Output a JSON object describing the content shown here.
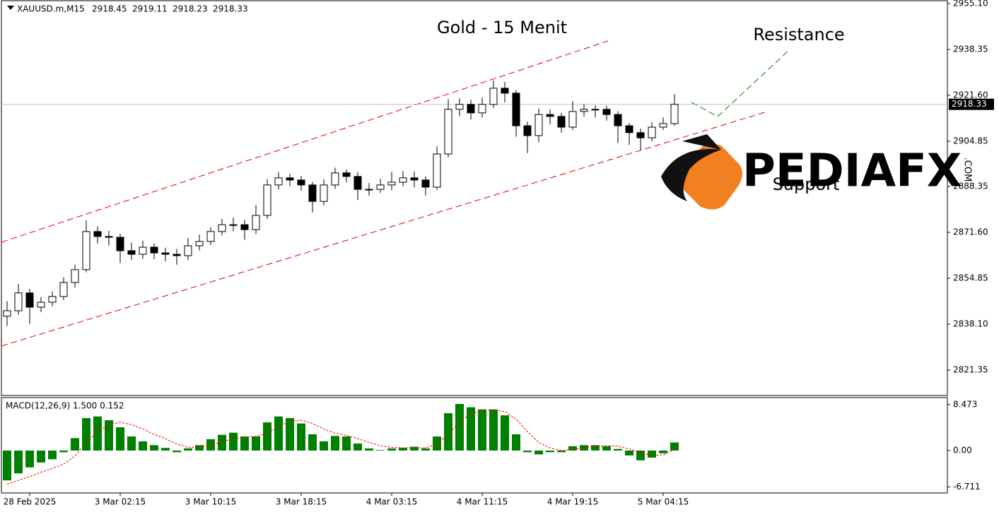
{
  "chart_data": [
    {
      "type": "candlestick",
      "title": "Gold - 15 Menit",
      "symbol": "XAUUSD.m,M15",
      "header_values": [
        2918.45,
        2919.11,
        2918.23,
        2918.33
      ],
      "annotations": [
        "Resistance",
        "Support"
      ],
      "logo": "PEDIAFX",
      "logo_suffix": ".COM",
      "categories": [
        null,
        null,
        "28 Feb 2025",
        null,
        null,
        null,
        null,
        null,
        null,
        null,
        "3 Mar 02:15",
        null,
        null,
        null,
        null,
        null,
        null,
        null,
        "3 Mar 10:15",
        null,
        null,
        null,
        null,
        null,
        null,
        null,
        "3 Mar 18:15",
        null,
        null,
        null,
        null,
        null,
        null,
        null,
        "4 Mar 03:15",
        null,
        null,
        null,
        null,
        null,
        null,
        null,
        "4 Mar 11:15",
        null,
        null,
        null,
        null,
        null,
        null,
        null,
        "4 Mar 19:15",
        null,
        null,
        null,
        null,
        null,
        null,
        null,
        "5 Mar 04:15",
        null
      ],
      "open": [
        2841.0,
        2843.0,
        2849.5,
        2844.3,
        2846.1,
        2848.2,
        2853.3,
        2858.0,
        2871.9,
        2870.1,
        2869.8,
        2864.9,
        2863.6,
        2866.2,
        2864.1,
        2863.6,
        2863.1,
        2866.7,
        2868.3,
        2871.9,
        2874.4,
        2874.4,
        2872.6,
        2877.8,
        2888.9,
        2891.5,
        2890.7,
        2888.9,
        2882.9,
        2888.9,
        2893.3,
        2892.0,
        2887.3,
        2887.3,
        2888.9,
        2889.9,
        2891.5,
        2890.7,
        2888.1,
        2900.2,
        2916.5,
        2918.3,
        2915.2,
        2918.3,
        2924.2,
        2922.4,
        2910.5,
        2906.9,
        2914.6,
        2913.9,
        2910.0,
        2915.7,
        2916.5,
        2916.5,
        2914.6,
        2910.5,
        2908.0,
        2906.1,
        2910.0,
        2911.3
      ],
      "high": [
        2846.5,
        2852.8,
        2851.0,
        2848.0,
        2850.1,
        2855.2,
        2859.8,
        2876.0,
        2873.8,
        2872.2,
        2871.0,
        2867.8,
        2868.5,
        2867.5,
        2866.0,
        2865.6,
        2869.5,
        2870.8,
        2873.5,
        2876.5,
        2877.0,
        2876.2,
        2881.5,
        2891.0,
        2893.6,
        2893.0,
        2892.2,
        2890.0,
        2891.0,
        2895.2,
        2894.5,
        2893.5,
        2889.6,
        2891.2,
        2893.6,
        2894.0,
        2893.8,
        2892.0,
        2903.0,
        2920.2,
        2920.5,
        2920.0,
        2920.8,
        2927.0,
        2926.5,
        2923.5,
        2912.0,
        2916.8,
        2916.5,
        2915.2,
        2919.5,
        2918.4,
        2918.0,
        2917.8,
        2915.8,
        2911.5,
        2909.5,
        2911.8,
        2913.5,
        2922.0
      ],
      "low": [
        2837.5,
        2841.5,
        2838.2,
        2842.5,
        2844.6,
        2846.9,
        2851.5,
        2857.0,
        2867.5,
        2866.8,
        2860.4,
        2861.5,
        2862.0,
        2861.8,
        2861.0,
        2859.8,
        2861.5,
        2865.0,
        2867.0,
        2870.5,
        2872.0,
        2868.9,
        2871.0,
        2876.5,
        2887.2,
        2888.5,
        2886.8,
        2878.9,
        2881.5,
        2887.5,
        2889.8,
        2883.4,
        2885.0,
        2886.0,
        2887.0,
        2888.4,
        2888.0,
        2885.0,
        2887.0,
        2899.0,
        2914.0,
        2912.8,
        2913.5,
        2917.0,
        2919.0,
        2906.5,
        2900.5,
        2904.5,
        2911.0,
        2908.0,
        2909.0,
        2913.8,
        2913.5,
        2912.4,
        2904.2,
        2903.5,
        2901.5,
        2904.8,
        2909.0,
        2910.5
      ],
      "close": [
        2843.0,
        2849.5,
        2844.3,
        2846.1,
        2848.2,
        2853.3,
        2858.0,
        2871.9,
        2870.1,
        2869.8,
        2864.9,
        2863.6,
        2866.2,
        2864.1,
        2863.6,
        2863.1,
        2866.7,
        2868.3,
        2871.9,
        2874.4,
        2874.4,
        2872.6,
        2877.8,
        2888.9,
        2891.5,
        2890.7,
        2888.9,
        2882.9,
        2888.9,
        2893.3,
        2892.0,
        2887.3,
        2887.3,
        2888.9,
        2889.9,
        2891.5,
        2890.7,
        2888.1,
        2900.2,
        2916.5,
        2918.3,
        2915.2,
        2918.3,
        2924.2,
        2922.4,
        2910.5,
        2906.9,
        2914.6,
        2913.9,
        2910.0,
        2915.7,
        2916.5,
        2916.5,
        2914.6,
        2910.5,
        2908.0,
        2906.1,
        2910.0,
        2911.3,
        2918.33
      ],
      "last_price": 2918.33,
      "ylim": [
        2812.08,
        2956.39
      ],
      "yticks": [
        {
          "value": 2955.1,
          "label": "2955.10"
        },
        2938.35,
        {
          "value": 2921.6,
          "label": "2921.60"
        },
        2904.85,
        2888.35,
        {
          "value": 2871.6,
          "label": "2871.60"
        },
        2854.85,
        {
          "value": 2838.1,
          "label": "2838.10"
        },
        2821.35
      ],
      "up_color": "#ffffff",
      "down_color": "#000000"
    },
    {
      "type": "macd",
      "label": "MACD(12,26,9) 1.500 0.152",
      "values": [
        -5.5,
        -4.2,
        -3.1,
        -2.2,
        -1.6,
        -0.3,
        2.3,
        6.0,
        6.3,
        5.6,
        4.3,
        2.6,
        1.7,
        1.0,
        0.5,
        -0.3,
        0.4,
        1.0,
        2.1,
        2.9,
        3.3,
        2.6,
        2.6,
        5.2,
        6.3,
        6.0,
        5.0,
        3.0,
        1.7,
        2.7,
        2.6,
        1.3,
        0.4,
        0.1,
        0.4,
        0.5,
        0.7,
        0.4,
        2.6,
        6.9,
        8.6,
        8.0,
        7.6,
        7.6,
        6.5,
        3.0,
        -0.3,
        -0.7,
        -0.3,
        -0.3,
        0.8,
        1.0,
        1.0,
        0.8,
        0.3,
        -0.9,
        -1.8,
        -1.3,
        -0.5,
        1.5
      ],
      "signal": [
        -6.2,
        -5.5,
        -4.8,
        -4.0,
        -3.3,
        -2.5,
        -1.0,
        1.5,
        3.5,
        4.8,
        5.2,
        4.8,
        4.0,
        3.0,
        2.2,
        1.2,
        0.6,
        0.6,
        1.0,
        1.6,
        2.2,
        2.5,
        2.6,
        3.2,
        4.5,
        5.4,
        5.6,
        5.0,
        4.0,
        3.2,
        2.8,
        2.2,
        1.5,
        0.9,
        0.6,
        0.5,
        0.5,
        0.5,
        1.2,
        3.0,
        5.3,
        6.8,
        7.4,
        7.5,
        7.2,
        5.8,
        3.5,
        1.5,
        0.5,
        0.0,
        0.2,
        0.5,
        0.8,
        0.9,
        0.8,
        0.3,
        -0.4,
        -0.9,
        -0.8,
        0.152
      ],
      "ylim": [
        -7.82,
        9.777
      ],
      "yticks": [
        8.473,
        {
          "value": 0,
          "label": "0.00"
        },
        -6.711
      ],
      "color": "#008000",
      "signal_color": "#ff0000"
    }
  ]
}
